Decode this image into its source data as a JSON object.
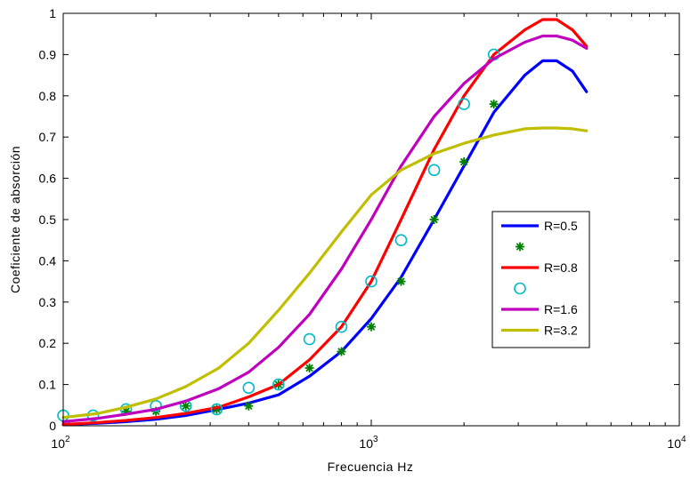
{
  "chart_data": {
    "type": "line",
    "title": "",
    "xlabel": "Frecuencia Hz",
    "ylabel": "Coeficiente de absorción",
    "xscale": "log",
    "xlim": [
      100,
      10000
    ],
    "ylim": [
      0,
      1
    ],
    "x_ticks": [
      {
        "value": 100,
        "base": "10",
        "exp": "2"
      },
      {
        "value": 1000,
        "base": "10",
        "exp": "3"
      },
      {
        "value": 10000,
        "base": "10",
        "exp": "4"
      }
    ],
    "y_ticks": [
      "0",
      "0.1",
      "0.2",
      "0.3",
      "0.4",
      "0.5",
      "0.6",
      "0.7",
      "0.8",
      "0.9",
      "1"
    ],
    "grid": false,
    "legend_position": "right",
    "series": [
      {
        "name": "R=0.5",
        "kind": "line",
        "color": "#0000ff",
        "x": [
          100,
          130,
          160,
          200,
          250,
          320,
          400,
          500,
          630,
          800,
          1000,
          1250,
          1600,
          2000,
          2500,
          3150,
          3600,
          4000,
          4500,
          5000
        ],
        "y": [
          0.003,
          0.006,
          0.01,
          0.016,
          0.025,
          0.04,
          0.055,
          0.075,
          0.12,
          0.18,
          0.26,
          0.36,
          0.5,
          0.63,
          0.76,
          0.85,
          0.885,
          0.885,
          0.86,
          0.81
        ]
      },
      {
        "name": "",
        "kind": "markers",
        "marker": "star",
        "color": "#008000",
        "x": [
          160,
          200,
          250,
          315,
          400,
          500,
          630,
          800,
          1000,
          1250,
          1600,
          2000,
          2500
        ],
        "y": [
          0.035,
          0.035,
          0.048,
          0.04,
          0.048,
          0.1,
          0.14,
          0.18,
          0.24,
          0.35,
          0.5,
          0.64,
          0.78
        ]
      },
      {
        "name": "R=0.8",
        "kind": "line",
        "color": "#ff0000",
        "x": [
          100,
          130,
          160,
          200,
          250,
          320,
          400,
          500,
          630,
          800,
          1000,
          1250,
          1600,
          2000,
          2500,
          3150,
          3600,
          4000,
          4500,
          5000
        ],
        "y": [
          0.003,
          0.008,
          0.013,
          0.02,
          0.03,
          0.045,
          0.07,
          0.1,
          0.16,
          0.24,
          0.35,
          0.5,
          0.67,
          0.8,
          0.9,
          0.96,
          0.985,
          0.985,
          0.96,
          0.92
        ]
      },
      {
        "name": "",
        "kind": "markers",
        "marker": "circle",
        "color": "#00bcc8",
        "x": [
          100,
          125,
          160,
          200,
          250,
          315,
          400,
          500,
          630,
          800,
          1000,
          1250,
          1600,
          2000,
          2500
        ],
        "y": [
          0.025,
          0.025,
          0.04,
          0.048,
          0.048,
          0.04,
          0.092,
          0.1,
          0.21,
          0.24,
          0.35,
          0.45,
          0.62,
          0.78,
          0.9
        ]
      },
      {
        "name": "R=1.6",
        "kind": "line",
        "color": "#bf00bf",
        "x": [
          100,
          130,
          160,
          200,
          250,
          320,
          400,
          500,
          630,
          800,
          1000,
          1250,
          1600,
          2000,
          2500,
          3150,
          3600,
          4000,
          4500,
          5000
        ],
        "y": [
          0.01,
          0.018,
          0.028,
          0.04,
          0.06,
          0.09,
          0.13,
          0.19,
          0.27,
          0.38,
          0.5,
          0.63,
          0.75,
          0.83,
          0.89,
          0.93,
          0.945,
          0.945,
          0.935,
          0.915
        ]
      },
      {
        "name": "R=3.2",
        "kind": "line",
        "color": "#bfbf00",
        "x": [
          100,
          130,
          160,
          200,
          250,
          320,
          400,
          500,
          630,
          800,
          1000,
          1250,
          1600,
          2000,
          2500,
          3150,
          3600,
          4000,
          4500,
          5000
        ],
        "y": [
          0.02,
          0.03,
          0.045,
          0.065,
          0.095,
          0.14,
          0.2,
          0.28,
          0.37,
          0.47,
          0.56,
          0.62,
          0.66,
          0.685,
          0.705,
          0.72,
          0.722,
          0.722,
          0.72,
          0.715
        ]
      }
    ],
    "legend_entries": [
      {
        "label": "R=0.5",
        "kind": "line",
        "color": "#0000ff"
      },
      {
        "label": "",
        "kind": "star",
        "color": "#008000"
      },
      {
        "label": "R=0.8",
        "kind": "line",
        "color": "#ff0000"
      },
      {
        "label": "",
        "kind": "circle",
        "color": "#00bcc8"
      },
      {
        "label": "R=1.6",
        "kind": "line",
        "color": "#bf00bf"
      },
      {
        "label": "R=3.2",
        "kind": "line",
        "color": "#bfbf00"
      }
    ]
  }
}
